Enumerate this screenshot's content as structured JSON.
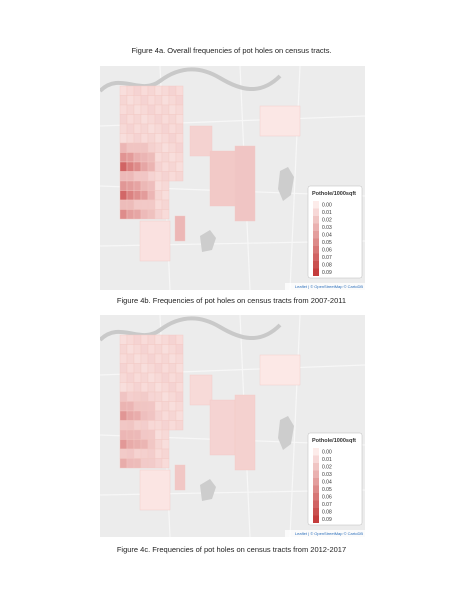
{
  "figures": [
    {
      "caption": "Figure 4a. Overall frequencies of pot holes on census tracts.",
      "legend": {
        "title": "Pothole/1000sqft",
        "items": [
          "0.00",
          "0.01",
          "0.02",
          "0.03",
          "0.04",
          "0.05",
          "0.06",
          "0.07",
          "0.08",
          "0.09"
        ]
      },
      "attribution": "Leaflet | © OpenStreetMap © CartoDB"
    },
    {
      "caption": "Figure 4b. Frequencies of pot holes on census tracts from 2007-2011",
      "legend": {
        "title": "Pothole/1000sqft",
        "items": [
          "0.00",
          "0.01",
          "0.02",
          "0.03",
          "0.04",
          "0.05",
          "0.06",
          "0.07",
          "0.08",
          "0.09"
        ]
      },
      "attribution": "Leaflet | © OpenStreetMap © CartoDB"
    }
  ],
  "footer_caption": "Figure 4c. Frequencies of pot holes on census tracts from 2012-2017"
}
